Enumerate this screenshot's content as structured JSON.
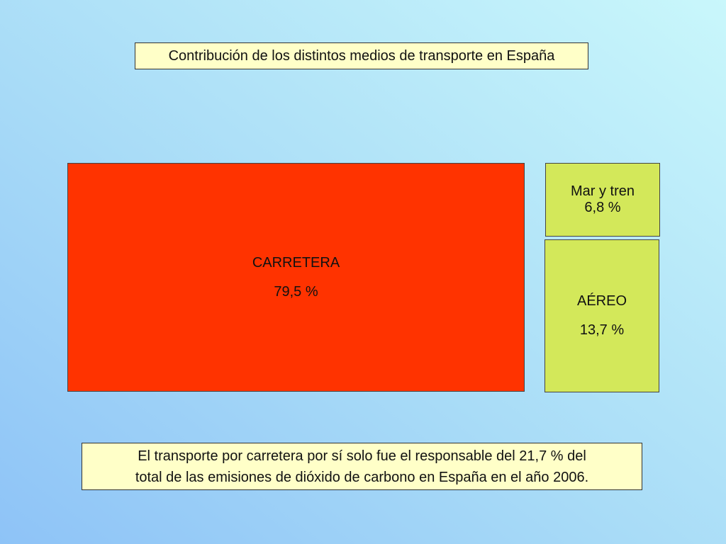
{
  "title": "Contribución de los distintos medios de transporte en España",
  "chart_data": {
    "type": "treemap",
    "title": "Contribución de los distintos medios de transporte en España",
    "categories": [
      "CARRETERA",
      "AÉREO",
      "Mar y tren"
    ],
    "values": [
      79.5,
      13.7,
      6.8
    ],
    "value_labels": [
      "79,5 %",
      "13,7 %",
      "6,8 %"
    ],
    "unit": "%"
  },
  "tiles": {
    "road": {
      "label": "CARRETERA",
      "value": "79,5 %",
      "color": "#ff3300"
    },
    "sea": {
      "label": "Mar y tren",
      "value": "6,8 %",
      "color": "#d3e85a"
    },
    "air": {
      "label": "AÉREO",
      "value": "13,7 %",
      "color": "#d3e85a"
    }
  },
  "note": {
    "line1": "El transporte por carretera por sí solo fue el responsable del 21,7 % del",
    "line2": "total de las emisiones de dióxido de carbono en España en el año 2006."
  }
}
